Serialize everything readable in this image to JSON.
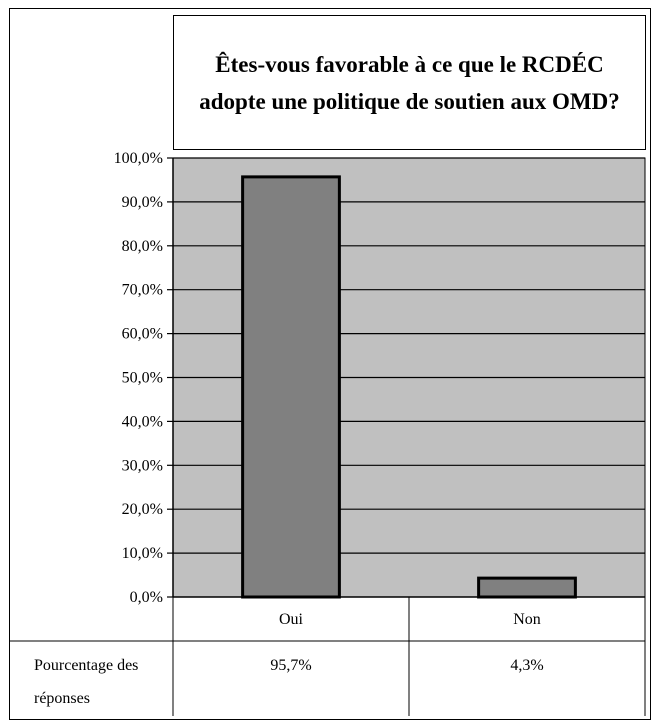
{
  "chart_data": {
    "type": "bar",
    "title": "Êtes-vous favorable à ce que le RCDÉC adopte une politique de soutien aux OMD?",
    "categories": [
      "Oui",
      "Non"
    ],
    "series": [
      {
        "name": "Pourcentage des réponses",
        "values": [
          95.7,
          4.3
        ]
      }
    ],
    "value_labels": [
      "95,7%",
      "4,3%"
    ],
    "ylim": [
      0,
      100
    ],
    "yticks": [
      0,
      10,
      20,
      30,
      40,
      50,
      60,
      70,
      80,
      90,
      100
    ],
    "ytick_labels": [
      "0,0%",
      "10,0%",
      "20,0%",
      "30,0%",
      "40,0%",
      "50,0%",
      "60,0%",
      "70,0%",
      "80,0%",
      "90,0%",
      "100,0%"
    ],
    "grid": true,
    "xlabel": "",
    "ylabel": "",
    "data_table": true,
    "colors": {
      "plot_bg": "#c0c0c0",
      "bar_fill": "#808080",
      "bar_stroke": "#000000"
    }
  }
}
